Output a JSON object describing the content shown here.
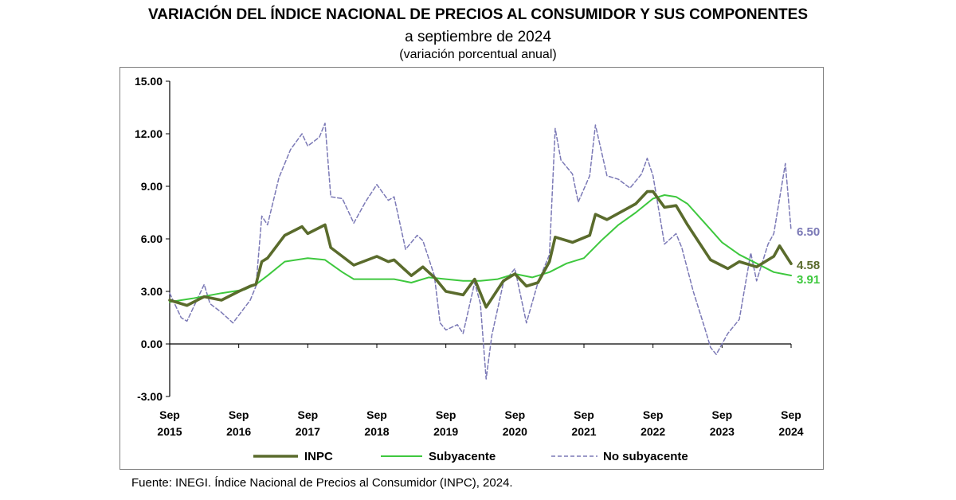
{
  "header": {
    "title": "VARIACIÓN DEL ÍNDICE NACIONAL DE PRECIOS AL CONSUMIDOR Y SUS COMPONENTES",
    "subtitle": "a septiembre de 2024",
    "subtitle2": "(variación porcentual anual)"
  },
  "footer": {
    "source_prefix": "Fuente: ",
    "source_org": "INEGI",
    "source_mid": ". Índice Nacional de Precios al Consumidor (",
    "source_abbr": "INPC",
    "source_end": "), 2024."
  },
  "chart_data": {
    "type": "line",
    "ylim": [
      -3,
      15
    ],
    "yticks": [
      "-3.00",
      "0.00",
      "3.00",
      "6.00",
      "9.00",
      "12.00",
      "15.00"
    ],
    "ytick_values": [
      -3,
      0,
      3,
      6,
      9,
      12,
      15
    ],
    "xlim": [
      "2015-09",
      "2024-09"
    ],
    "xtick_values": [
      "2015-09",
      "2016-09",
      "2017-09",
      "2018-09",
      "2019-09",
      "2020-09",
      "2021-09",
      "2022-09",
      "2023-09",
      "2024-09"
    ],
    "xticks": [
      {
        "month": "Sep",
        "year": "2015"
      },
      {
        "month": "Sep",
        "year": "2016"
      },
      {
        "month": "Sep",
        "year": "2017"
      },
      {
        "month": "Sep",
        "year": "2018"
      },
      {
        "month": "Sep",
        "year": "2019"
      },
      {
        "month": "Sep",
        "year": "2020"
      },
      {
        "month": "Sep",
        "year": "2021"
      },
      {
        "month": "Sep",
        "year": "2022"
      },
      {
        "month": "Sep",
        "year": "2023"
      },
      {
        "month": "Sep",
        "year": "2024"
      }
    ],
    "legend_position": "bottom",
    "colors": {
      "INPC": "#5a6b2c",
      "Subyacente": "#3ec83e",
      "No subyacente": "#7b79b6"
    },
    "end_labels": {
      "INPC": "4.58",
      "Subyacente": "3.91",
      "No subyacente": "6.50"
    },
    "series": [
      {
        "name": "INPC",
        "points": [
          [
            "2015-09",
            2.5
          ],
          [
            "2015-12",
            2.2
          ],
          [
            "2016-03",
            2.7
          ],
          [
            "2016-06",
            2.5
          ],
          [
            "2016-09",
            3.0
          ],
          [
            "2016-11",
            3.3
          ],
          [
            "2016-12",
            3.4
          ],
          [
            "2017-01",
            4.7
          ],
          [
            "2017-02",
            4.9
          ],
          [
            "2017-05",
            6.2
          ],
          [
            "2017-08",
            6.7
          ],
          [
            "2017-09",
            6.3
          ],
          [
            "2017-12",
            6.8
          ],
          [
            "2018-01",
            5.5
          ],
          [
            "2018-03",
            5.0
          ],
          [
            "2018-05",
            4.5
          ],
          [
            "2018-09",
            5.0
          ],
          [
            "2018-11",
            4.7
          ],
          [
            "2018-12",
            4.8
          ],
          [
            "2019-03",
            3.9
          ],
          [
            "2019-05",
            4.4
          ],
          [
            "2019-07",
            3.8
          ],
          [
            "2019-09",
            3.0
          ],
          [
            "2019-12",
            2.8
          ],
          [
            "2020-02",
            3.7
          ],
          [
            "2020-04",
            2.1
          ],
          [
            "2020-07",
            3.6
          ],
          [
            "2020-09",
            4.0
          ],
          [
            "2020-11",
            3.3
          ],
          [
            "2021-01",
            3.5
          ],
          [
            "2021-03",
            4.7
          ],
          [
            "2021-04",
            6.1
          ],
          [
            "2021-07",
            5.8
          ],
          [
            "2021-10",
            6.2
          ],
          [
            "2021-11",
            7.4
          ],
          [
            "2022-01",
            7.1
          ],
          [
            "2022-06",
            8.0
          ],
          [
            "2022-08",
            8.7
          ],
          [
            "2022-09",
            8.7
          ],
          [
            "2022-11",
            7.8
          ],
          [
            "2023-01",
            7.9
          ],
          [
            "2023-03",
            6.8
          ],
          [
            "2023-05",
            5.8
          ],
          [
            "2023-07",
            4.8
          ],
          [
            "2023-10",
            4.3
          ],
          [
            "2023-12",
            4.7
          ],
          [
            "2024-03",
            4.4
          ],
          [
            "2024-06",
            5.0
          ],
          [
            "2024-07",
            5.6
          ],
          [
            "2024-09",
            4.58
          ]
        ]
      },
      {
        "name": "Subyacente",
        "points": [
          [
            "2015-09",
            2.4
          ],
          [
            "2016-01",
            2.6
          ],
          [
            "2016-06",
            2.9
          ],
          [
            "2016-10",
            3.1
          ],
          [
            "2016-12",
            3.4
          ],
          [
            "2017-02",
            3.9
          ],
          [
            "2017-05",
            4.7
          ],
          [
            "2017-09",
            4.9
          ],
          [
            "2017-12",
            4.8
          ],
          [
            "2018-03",
            4.1
          ],
          [
            "2018-05",
            3.7
          ],
          [
            "2018-09",
            3.7
          ],
          [
            "2018-12",
            3.7
          ],
          [
            "2019-03",
            3.5
          ],
          [
            "2019-06",
            3.8
          ],
          [
            "2019-09",
            3.7
          ],
          [
            "2019-12",
            3.6
          ],
          [
            "2020-03",
            3.6
          ],
          [
            "2020-06",
            3.7
          ],
          [
            "2020-09",
            4.0
          ],
          [
            "2020-12",
            3.8
          ],
          [
            "2021-03",
            4.1
          ],
          [
            "2021-06",
            4.6
          ],
          [
            "2021-09",
            4.9
          ],
          [
            "2021-12",
            5.9
          ],
          [
            "2022-03",
            6.8
          ],
          [
            "2022-06",
            7.5
          ],
          [
            "2022-09",
            8.3
          ],
          [
            "2022-11",
            8.5
          ],
          [
            "2023-01",
            8.4
          ],
          [
            "2023-03",
            8.0
          ],
          [
            "2023-06",
            6.9
          ],
          [
            "2023-09",
            5.8
          ],
          [
            "2023-12",
            5.1
          ],
          [
            "2024-03",
            4.6
          ],
          [
            "2024-06",
            4.1
          ],
          [
            "2024-09",
            3.91
          ]
        ]
      },
      {
        "name": "No subyacente",
        "points": [
          [
            "2015-09",
            2.9
          ],
          [
            "2015-11",
            1.5
          ],
          [
            "2015-12",
            1.3
          ],
          [
            "2016-02",
            2.7
          ],
          [
            "2016-03",
            3.4
          ],
          [
            "2016-04",
            2.3
          ],
          [
            "2016-06",
            1.8
          ],
          [
            "2016-08",
            1.2
          ],
          [
            "2016-11",
            2.5
          ],
          [
            "2016-12",
            3.3
          ],
          [
            "2017-01",
            7.3
          ],
          [
            "2017-02",
            6.8
          ],
          [
            "2017-04",
            9.5
          ],
          [
            "2017-06",
            11.1
          ],
          [
            "2017-08",
            12.0
          ],
          [
            "2017-09",
            11.3
          ],
          [
            "2017-11",
            11.8
          ],
          [
            "2017-12",
            12.6
          ],
          [
            "2018-01",
            8.4
          ],
          [
            "2018-03",
            8.3
          ],
          [
            "2018-05",
            6.9
          ],
          [
            "2018-07",
            8.1
          ],
          [
            "2018-09",
            9.1
          ],
          [
            "2018-11",
            8.2
          ],
          [
            "2018-12",
            8.4
          ],
          [
            "2019-02",
            5.4
          ],
          [
            "2019-04",
            6.2
          ],
          [
            "2019-05",
            5.9
          ],
          [
            "2019-07",
            3.9
          ],
          [
            "2019-08",
            1.2
          ],
          [
            "2019-09",
            0.8
          ],
          [
            "2019-11",
            1.1
          ],
          [
            "2019-12",
            0.6
          ],
          [
            "2020-02",
            3.5
          ],
          [
            "2020-03",
            2.3
          ],
          [
            "2020-04",
            -2.0
          ],
          [
            "2020-05",
            0.5
          ],
          [
            "2020-07",
            3.5
          ],
          [
            "2020-09",
            4.3
          ],
          [
            "2020-11",
            1.2
          ],
          [
            "2021-01",
            3.5
          ],
          [
            "2021-03",
            5.1
          ],
          [
            "2021-04",
            12.3
          ],
          [
            "2021-05",
            10.5
          ],
          [
            "2021-07",
            9.7
          ],
          [
            "2021-08",
            8.1
          ],
          [
            "2021-10",
            9.6
          ],
          [
            "2021-11",
            12.5
          ],
          [
            "2022-01",
            9.6
          ],
          [
            "2022-03",
            9.4
          ],
          [
            "2022-05",
            8.9
          ],
          [
            "2022-07",
            9.7
          ],
          [
            "2022-08",
            10.6
          ],
          [
            "2022-09",
            9.6
          ],
          [
            "2022-11",
            5.7
          ],
          [
            "2023-01",
            6.3
          ],
          [
            "2023-02",
            5.5
          ],
          [
            "2023-04",
            3.0
          ],
          [
            "2023-06",
            0.9
          ],
          [
            "2023-07",
            -0.2
          ],
          [
            "2023-08",
            -0.6
          ],
          [
            "2023-10",
            0.6
          ],
          [
            "2023-12",
            1.4
          ],
          [
            "2024-02",
            5.2
          ],
          [
            "2024-03",
            3.6
          ],
          [
            "2024-05",
            5.7
          ],
          [
            "2024-06",
            6.3
          ],
          [
            "2024-08",
            10.3
          ],
          [
            "2024-09",
            6.5
          ]
        ]
      }
    ]
  }
}
